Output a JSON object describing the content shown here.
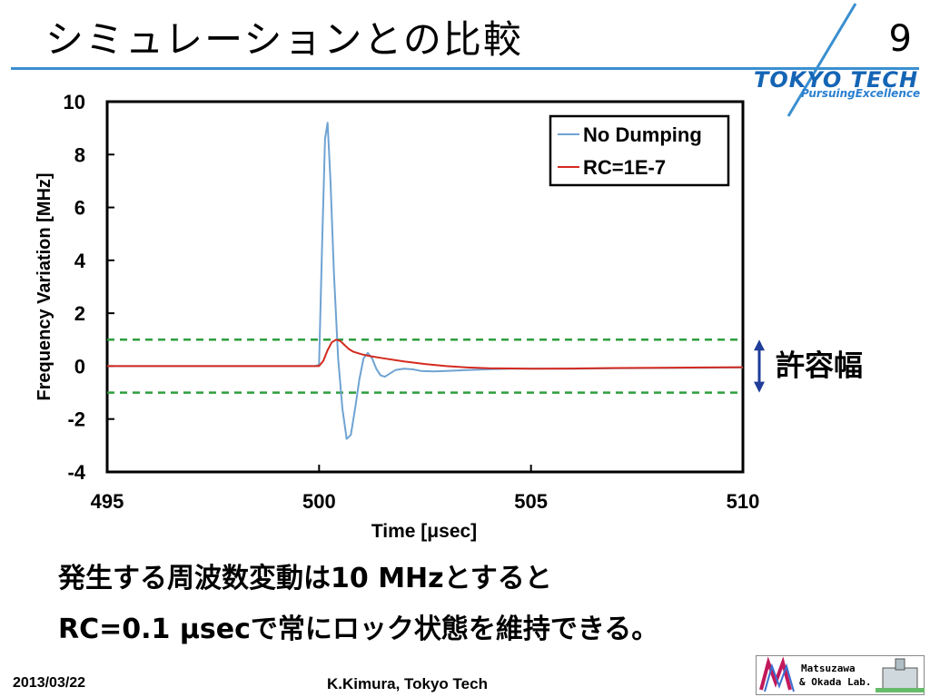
{
  "slide": {
    "title": "シミュレーションとの比較",
    "page_number": "9",
    "logo_main": "TOKYO TECH",
    "logo_sub": "PursuingExcellence",
    "body_lines": [
      "発生する周波数変動は10 MHzとすると",
      "RC=0.1 μsecで常にロック状態を維持できる。"
    ],
    "tolerance_label": "許容幅",
    "footer_date": "2013/03/22",
    "footer_author": "K.Kimura, Tokyo Tech",
    "lab_logo": [
      "Matsuzawa",
      "& Okada Lab."
    ],
    "colors": {
      "accent": "#3a8fd0",
      "tolerance": "#2e9e3e",
      "arrow": "#1f3d99"
    }
  },
  "chart_data": {
    "type": "line",
    "title": "",
    "xlabel": "Time [μsec]",
    "ylabel": "Frequency Variation [MHz]",
    "xlim": [
      495,
      510
    ],
    "ylim": [
      -4,
      10
    ],
    "xticks": [
      495,
      500,
      505,
      510
    ],
    "yticks": [
      -4,
      -2,
      0,
      2,
      4,
      6,
      8,
      10
    ],
    "grid": false,
    "legend_position": "top-right",
    "threshold_lines": [
      1,
      -1
    ],
    "series": [
      {
        "name": "No Dumping",
        "color": "#6fa3d2",
        "x": [
          495,
          499.9,
          500.0,
          500.07,
          500.14,
          500.2,
          500.27,
          500.35,
          500.45,
          500.55,
          500.65,
          500.75,
          500.85,
          500.95,
          501.05,
          501.15,
          501.25,
          501.35,
          501.45,
          501.55,
          501.65,
          501.8,
          502.0,
          502.2,
          502.4,
          502.7,
          503.0,
          503.5,
          504.0,
          504.5,
          505.0,
          506.0,
          507.0,
          508.0,
          509.0,
          510.0
        ],
        "y": [
          0,
          0,
          0.05,
          4.5,
          8.6,
          9.2,
          7.0,
          3.5,
          0.3,
          -1.6,
          -2.75,
          -2.6,
          -1.6,
          -0.5,
          0.3,
          0.5,
          0.3,
          -0.1,
          -0.35,
          -0.4,
          -0.3,
          -0.15,
          -0.1,
          -0.12,
          -0.18,
          -0.2,
          -0.18,
          -0.15,
          -0.12,
          -0.1,
          -0.1,
          -0.1,
          -0.08,
          -0.07,
          -0.06,
          -0.05
        ]
      },
      {
        "name": "RC=1E-7",
        "color": "#d42a1e",
        "x": [
          495,
          500.0,
          500.1,
          500.2,
          500.3,
          500.4,
          500.5,
          500.6,
          500.7,
          500.8,
          501.0,
          501.2,
          501.5,
          502.0,
          502.5,
          503.0,
          503.5,
          504.0,
          505.0,
          506.0,
          507.0,
          508.0,
          509.0,
          510.0
        ],
        "y": [
          0,
          0,
          0.2,
          0.6,
          0.9,
          1.0,
          0.95,
          0.8,
          0.65,
          0.55,
          0.45,
          0.38,
          0.3,
          0.18,
          0.08,
          0.0,
          -0.05,
          -0.08,
          -0.1,
          -0.09,
          -0.07,
          -0.06,
          -0.05,
          -0.04
        ]
      }
    ]
  }
}
